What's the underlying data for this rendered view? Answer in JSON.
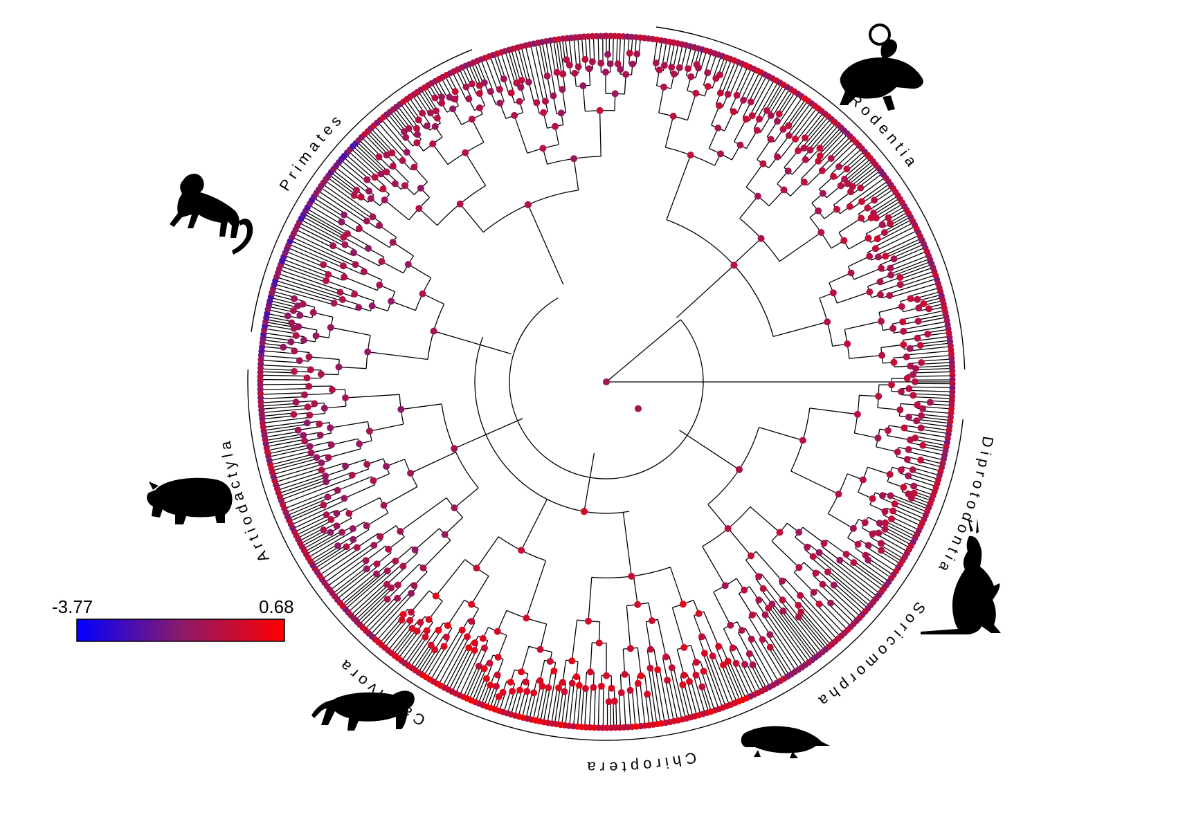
{
  "chart_data": {
    "type": "circular-phylogeny",
    "clades": [
      {
        "name": "Rodentia",
        "start_deg": 8,
        "end_deg": 88
      },
      {
        "name": "Diprotodontia",
        "start_deg": 96,
        "end_deg": 122
      },
      {
        "name": "Soricomorpha",
        "start_deg": 122,
        "end_deg": 150
      },
      {
        "name": "Chiroptera",
        "start_deg": 150,
        "end_deg": 200
      },
      {
        "name": "Carnivora",
        "start_deg": 200,
        "end_deg": 232
      },
      {
        "name": "Artiodactyla",
        "start_deg": 232,
        "end_deg": 272
      },
      {
        "name": "Primates",
        "start_deg": 278,
        "end_deg": 338
      }
    ],
    "color_scale": {
      "min": -3.77,
      "max": 0.68,
      "min_label": "-3.77",
      "max_label": "0.68",
      "low_color": "#0000ff",
      "mid_color": "#a0104f",
      "high_color": "#ff0000"
    },
    "silhouettes": [
      "mouse-icon",
      "kangaroo-icon",
      "shrew-icon",
      "tiger-icon",
      "hippo-icon",
      "monkey-icon"
    ]
  }
}
